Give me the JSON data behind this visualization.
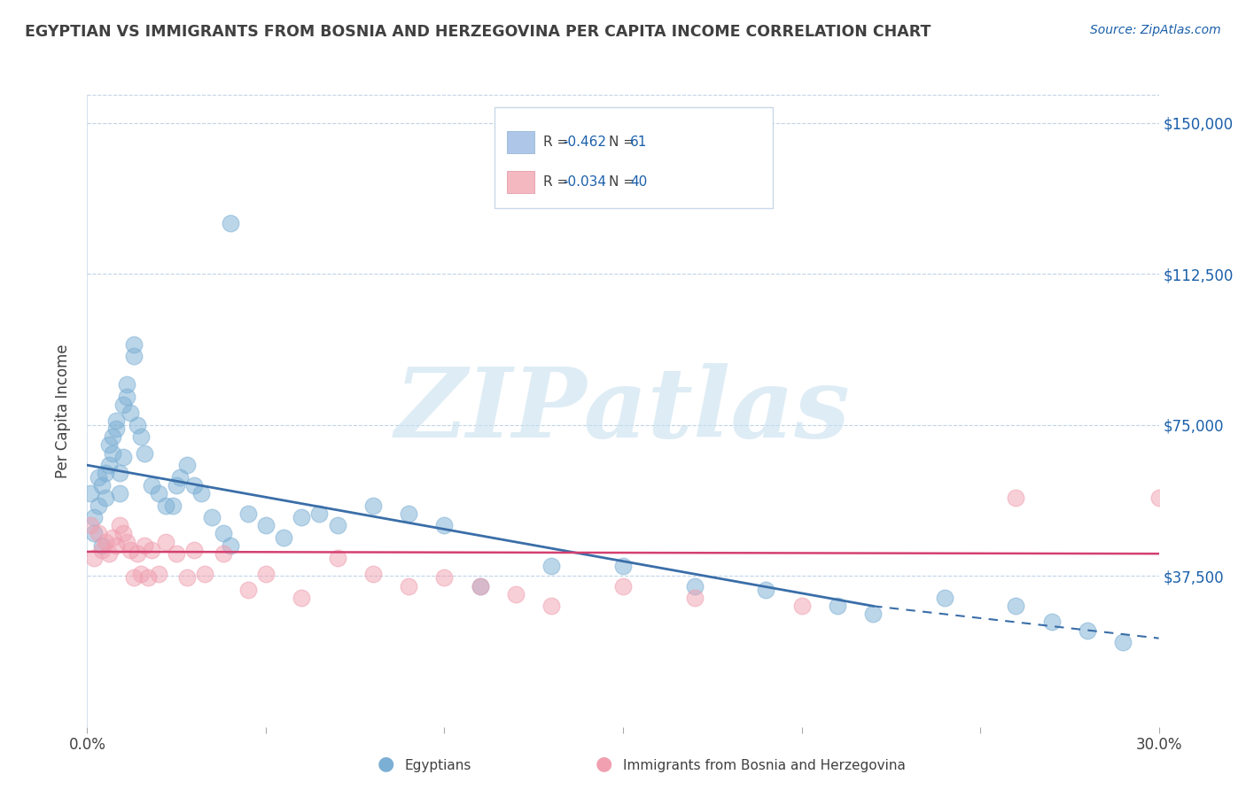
{
  "title": "EGYPTIAN VS IMMIGRANTS FROM BOSNIA AND HERZEGOVINA PER CAPITA INCOME CORRELATION CHART",
  "source_text": "Source: ZipAtlas.com",
  "ylabel": "Per Capita Income",
  "xlim": [
    0.0,
    0.3
  ],
  "ylim": [
    0,
    157000
  ],
  "yticks": [
    0,
    37500,
    75000,
    112500,
    150000
  ],
  "ytick_labels": [
    "",
    "$37,500",
    "$75,000",
    "$112,500",
    "$150,000"
  ],
  "xticks": [
    0.0,
    0.05,
    0.1,
    0.15,
    0.2,
    0.25,
    0.3
  ],
  "watermark": "ZIPatlas",
  "egyptian_color": "#7bafd4",
  "bosnian_color": "#f0a0b0",
  "egyptian_line_color": "#3a6ea8",
  "bosnian_line_color": "#d44070",
  "background_color": "#ffffff",
  "title_color": "#404040",
  "legend_box_color": "#aec6e8",
  "legend_pink_color": "#f4b8c1",
  "label_egyptians": "Egyptians",
  "label_bosnians": "Immigrants from Bosnia and Herzegovina",
  "blue_line_x0": 0.0,
  "blue_line_y0": 65000,
  "blue_line_x1": 0.22,
  "blue_line_y1": 30000,
  "blue_line_x2": 0.3,
  "blue_line_y2": 22000,
  "pink_line_x0": 0.0,
  "pink_line_y0": 43500,
  "pink_line_x1": 0.3,
  "pink_line_y1": 43000,
  "egyptian_points_x": [
    0.001,
    0.002,
    0.002,
    0.003,
    0.003,
    0.004,
    0.004,
    0.005,
    0.005,
    0.006,
    0.006,
    0.007,
    0.007,
    0.008,
    0.008,
    0.009,
    0.009,
    0.01,
    0.01,
    0.011,
    0.011,
    0.012,
    0.013,
    0.013,
    0.014,
    0.015,
    0.016,
    0.018,
    0.02,
    0.022,
    0.024,
    0.025,
    0.026,
    0.028,
    0.03,
    0.032,
    0.035,
    0.038,
    0.04,
    0.045,
    0.05,
    0.055,
    0.06,
    0.065,
    0.07,
    0.08,
    0.09,
    0.1,
    0.11,
    0.13,
    0.15,
    0.17,
    0.19,
    0.21,
    0.22,
    0.24,
    0.26,
    0.27,
    0.28,
    0.29,
    0.04
  ],
  "egyptian_points_y": [
    58000,
    52000,
    48000,
    55000,
    62000,
    60000,
    45000,
    63000,
    57000,
    70000,
    65000,
    68000,
    72000,
    74000,
    76000,
    58000,
    63000,
    67000,
    80000,
    85000,
    82000,
    78000,
    95000,
    92000,
    75000,
    72000,
    68000,
    60000,
    58000,
    55000,
    55000,
    60000,
    62000,
    65000,
    60000,
    58000,
    52000,
    48000,
    45000,
    53000,
    50000,
    47000,
    52000,
    53000,
    50000,
    55000,
    53000,
    50000,
    35000,
    40000,
    40000,
    35000,
    34000,
    30000,
    28000,
    32000,
    30000,
    26000,
    24000,
    21000,
    125000
  ],
  "bosnian_points_x": [
    0.001,
    0.002,
    0.003,
    0.004,
    0.005,
    0.006,
    0.007,
    0.008,
    0.009,
    0.01,
    0.011,
    0.012,
    0.013,
    0.014,
    0.015,
    0.016,
    0.017,
    0.018,
    0.02,
    0.022,
    0.025,
    0.028,
    0.03,
    0.033,
    0.038,
    0.045,
    0.05,
    0.06,
    0.07,
    0.08,
    0.09,
    0.1,
    0.11,
    0.12,
    0.13,
    0.15,
    0.17,
    0.2,
    0.26,
    0.3
  ],
  "bosnian_points_y": [
    50000,
    42000,
    48000,
    44000,
    46000,
    43000,
    47000,
    45000,
    50000,
    48000,
    46000,
    44000,
    37000,
    43000,
    38000,
    45000,
    37000,
    44000,
    38000,
    46000,
    43000,
    37000,
    44000,
    38000,
    43000,
    34000,
    38000,
    32000,
    42000,
    38000,
    35000,
    37000,
    35000,
    33000,
    30000,
    35000,
    32000,
    30000,
    57000,
    57000
  ]
}
